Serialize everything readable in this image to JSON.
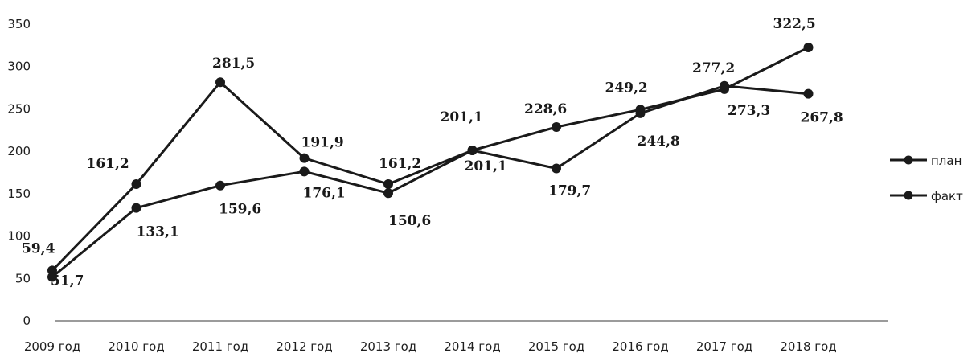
{
  "chart_data": {
    "type": "line",
    "categories": [
      "2009 год",
      "2010 год",
      "2011 год",
      "2012 год",
      "2013 год",
      "2014 год",
      "2015 год",
      "2016 год",
      "2017 год",
      "2018 год"
    ],
    "series": [
      {
        "name": "план",
        "values": [
          59.4,
          161.2,
          281.5,
          191.9,
          161.2,
          201.1,
          179.7,
          244.8,
          277.2,
          267.8
        ],
        "labels": [
          "59,4",
          "161,2",
          "281,5",
          "191,9",
          "161,2",
          "201,1",
          "179,7",
          "244,8",
          "277,2",
          "267,8"
        ]
      },
      {
        "name": "факт",
        "values": [
          51.7,
          133.1,
          159.6,
          176.1,
          150.6,
          201.1,
          228.6,
          249.2,
          273.3,
          322.5
        ],
        "labels": [
          "51,7",
          "133,1",
          "159,6",
          "176,1",
          "150,6",
          "201,1",
          "228,6",
          "249,2",
          "273,3",
          "322,5"
        ]
      }
    ],
    "yticks": [
      "0",
      "50",
      "100",
      "150",
      "200",
      "250",
      "300",
      "350"
    ],
    "ylim": [
      0,
      350
    ],
    "grid": false,
    "legend_position": "right",
    "line_color": "#1a1a1a"
  }
}
